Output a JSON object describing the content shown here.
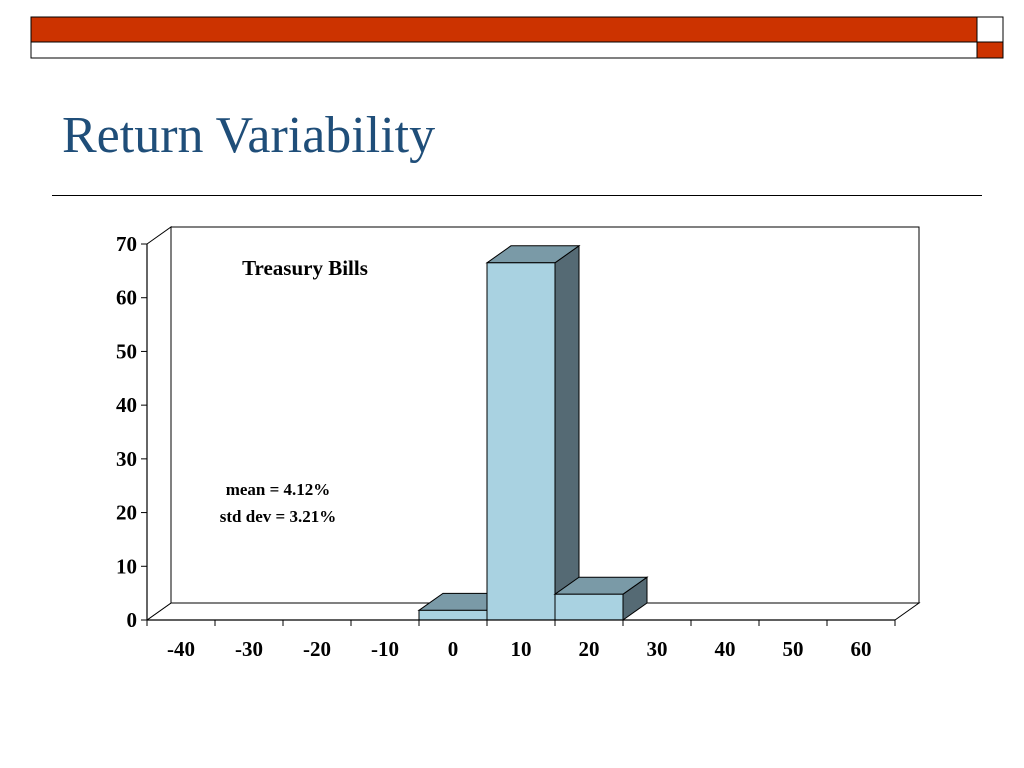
{
  "slide": {
    "title": "Return Variability",
    "colors": {
      "band": "#cc3300",
      "title": "#1f4e79"
    }
  },
  "chart_data": {
    "type": "bar",
    "categories": [
      "-40",
      "-30",
      "-20",
      "-10",
      "0",
      "10",
      "20",
      "30",
      "40",
      "50",
      "60"
    ],
    "series": [
      {
        "values": [
          0,
          0,
          0,
          0,
          1.8,
          66.5,
          4.8,
          0,
          0,
          0,
          0
        ]
      }
    ],
    "ylim": [
      0,
      70
    ],
    "yticks": [
      0,
      10,
      20,
      30,
      40,
      50,
      60,
      70
    ],
    "title": "Treasury Bills",
    "annotations": [
      "mean = 4.12%",
      "std dev = 3.21%"
    ],
    "style": "3d",
    "colors": {
      "bar_front": "#a9d2e1",
      "bar_top": "#7a9aa7",
      "bar_side": "#556a74"
    }
  }
}
